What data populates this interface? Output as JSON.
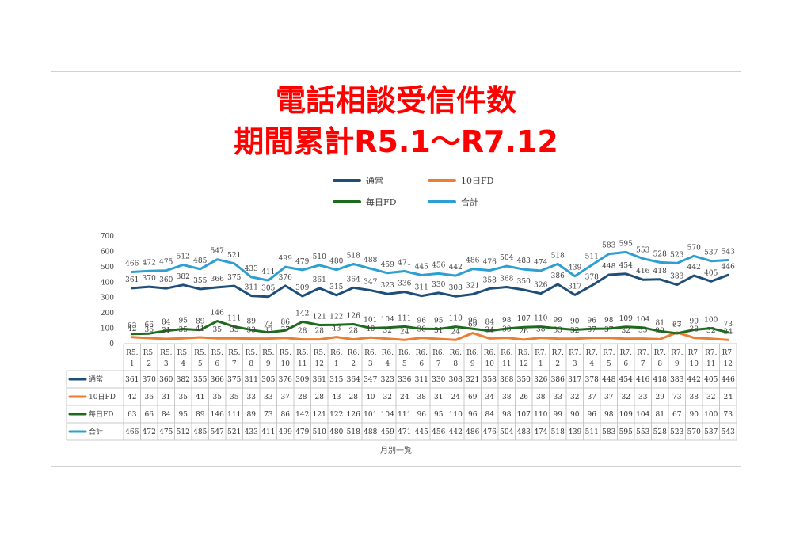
{
  "chart_data": {
    "type": "line",
    "title": "電話相談受信件数",
    "subtitle": "期間累計R5.1～R7.12",
    "xlabel": "月別一覧",
    "ylim": [
      0,
      700
    ],
    "yticks": [
      0,
      100,
      200,
      300,
      400,
      500,
      600,
      700
    ],
    "legend": "top",
    "grid": false,
    "categories": [
      [
        "R5.",
        "1"
      ],
      [
        "R5.",
        "2"
      ],
      [
        "R5.",
        "3"
      ],
      [
        "R5.",
        "4"
      ],
      [
        "R5.",
        "5"
      ],
      [
        "R5.",
        "6"
      ],
      [
        "R5.",
        "7"
      ],
      [
        "R5.",
        "8"
      ],
      [
        "R5.",
        "9"
      ],
      [
        "R5.",
        "10"
      ],
      [
        "R5.",
        "11"
      ],
      [
        "R5.",
        "12"
      ],
      [
        "R6.",
        "1"
      ],
      [
        "R6.",
        "2"
      ],
      [
        "R6.",
        "3"
      ],
      [
        "R6.",
        "4"
      ],
      [
        "R6.",
        "5"
      ],
      [
        "R6.",
        "6"
      ],
      [
        "R6.",
        "7"
      ],
      [
        "R6.",
        "8"
      ],
      [
        "R6.",
        "9"
      ],
      [
        "R6.",
        "10"
      ],
      [
        "R6.",
        "11"
      ],
      [
        "R6.",
        "12"
      ],
      [
        "R7.",
        "1"
      ],
      [
        "R7.",
        "2"
      ],
      [
        "R7.",
        "3"
      ],
      [
        "R7.",
        "4"
      ],
      [
        "R7.",
        "5"
      ],
      [
        "R7.",
        "6"
      ],
      [
        "R7.",
        "7"
      ],
      [
        "R7.",
        "8"
      ],
      [
        "R7.",
        "9"
      ],
      [
        "R7.",
        "10"
      ],
      [
        "R7.",
        "11"
      ],
      [
        "R7.",
        "12"
      ]
    ],
    "series": [
      {
        "name": "通常",
        "color": "#1f4e79",
        "values": [
          361,
          370,
          360,
          382,
          355,
          366,
          375,
          311,
          305,
          376,
          309,
          361,
          315,
          364,
          347,
          323,
          336,
          311,
          330,
          308,
          321,
          358,
          368,
          350,
          326,
          386,
          317,
          378,
          448,
          454,
          416,
          418,
          383,
          442,
          405,
          446
        ]
      },
      {
        "name": "10日FD",
        "color": "#ed7d31",
        "values": [
          42,
          36,
          31,
          35,
          41,
          35,
          35,
          33,
          33,
          37,
          28,
          28,
          43,
          28,
          40,
          32,
          24,
          38,
          31,
          24,
          69,
          34,
          38,
          26,
          38,
          33,
          32,
          37,
          37,
          32,
          33,
          29,
          73,
          38,
          32,
          24
        ]
      },
      {
        "name": "毎日FD",
        "color": "#1e6b1e",
        "values": [
          63,
          66,
          84,
          95,
          89,
          146,
          111,
          89,
          73,
          86,
          142,
          121,
          122,
          126,
          101,
          104,
          111,
          96,
          95,
          110,
          96,
          84,
          98,
          107,
          110,
          99,
          90,
          96,
          98,
          109,
          104,
          81,
          67,
          90,
          100,
          73
        ]
      },
      {
        "name": "合計",
        "color": "#2e9fd3",
        "values": [
          466,
          472,
          475,
          512,
          485,
          547,
          521,
          433,
          411,
          499,
          479,
          510,
          480,
          518,
          488,
          459,
          471,
          445,
          456,
          442,
          486,
          476,
          504,
          483,
          474,
          518,
          439,
          511,
          583,
          595,
          553,
          528,
          523,
          570,
          537,
          543
        ]
      }
    ]
  }
}
